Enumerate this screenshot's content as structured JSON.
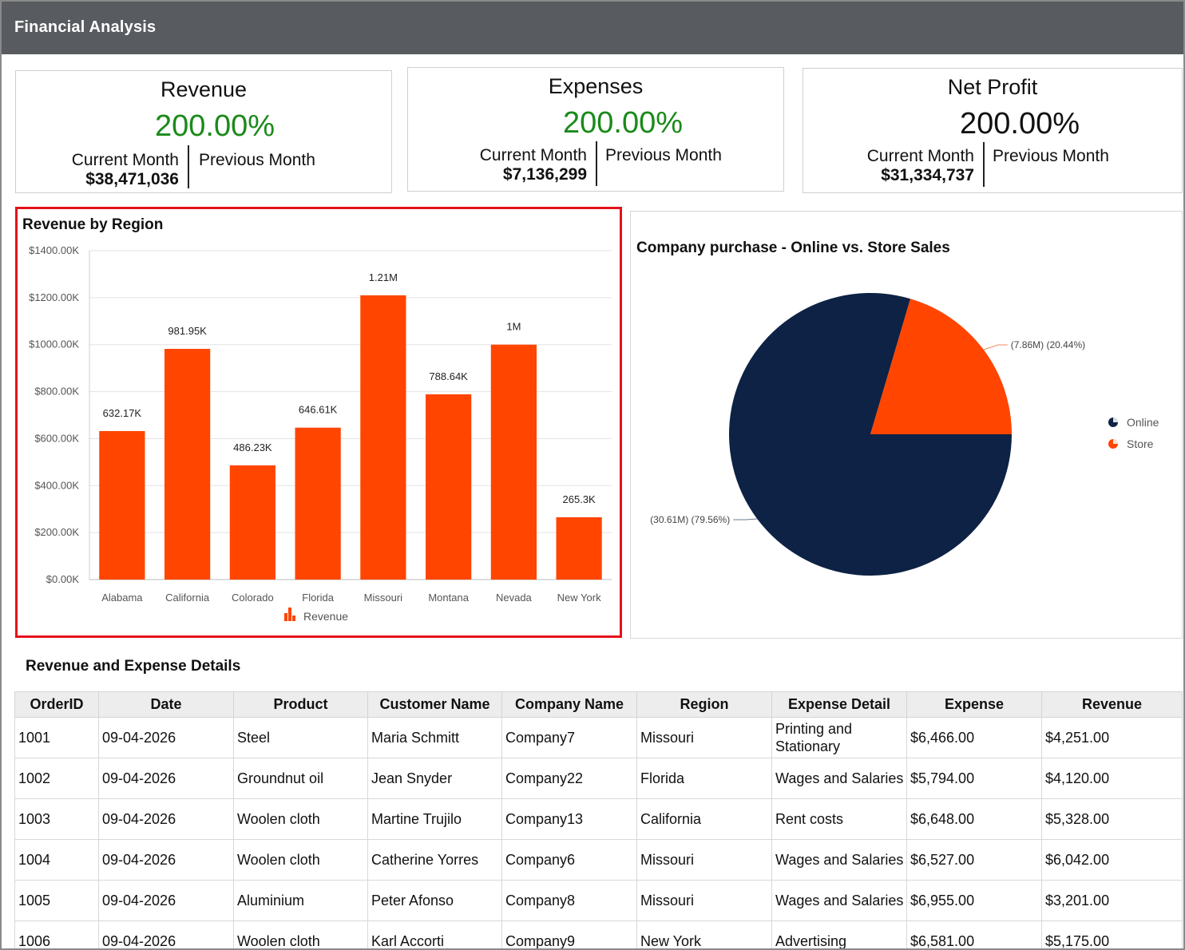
{
  "header": {
    "title": "Financial Analysis"
  },
  "kpis": [
    {
      "title": "Revenue",
      "percent": "200.00%",
      "current_label": "Current Month",
      "current_value": "$38,471,036",
      "previous_label": "Previous Month",
      "color": "#1a8a1a"
    },
    {
      "title": "Expenses",
      "percent": "200.00%",
      "current_label": "Current Month",
      "current_value": "$7,136,299",
      "previous_label": "Previous Month",
      "color": "#1a8a1a"
    },
    {
      "title": "Net Profit",
      "percent": "200.00%",
      "current_label": "Current Month",
      "current_value": "$31,334,737",
      "previous_label": "Previous Month",
      "color": "#111111"
    }
  ],
  "bar_chart": {
    "title": "Revenue by Region"
  },
  "pie_chart": {
    "title": "Company purchase - Online vs. Store Sales"
  },
  "chart_data": [
    {
      "type": "bar",
      "title": "Revenue by Region",
      "categories": [
        "Alabama",
        "California",
        "Colorado",
        "Florida",
        "Missouri",
        "Montana",
        "Nevada",
        "New York"
      ],
      "series": [
        {
          "name": "Revenue",
          "values": [
            632.17,
            981.95,
            486.23,
            646.61,
            1210,
            788.64,
            1000,
            265.3
          ],
          "color": "#ff4500"
        }
      ],
      "data_labels": [
        "632.17K",
        "981.95K",
        "486.23K",
        "646.61K",
        "1.21M",
        "788.64K",
        "1M",
        "265.3K"
      ],
      "y_ticks": [
        "$0.00K",
        "$200.00K",
        "$400.00K",
        "$600.00K",
        "$800.00K",
        "$1000.00K",
        "$1200.00K",
        "$1400.00K"
      ],
      "ylim": [
        0,
        1400
      ],
      "legend": "bottom",
      "grid": true
    },
    {
      "type": "pie",
      "title": "Company purchase - Online vs. Store Sales",
      "slices": [
        {
          "name": "Online",
          "value": 30.61,
          "label": "(30.61M) (79.56%)",
          "color": "#0d2244"
        },
        {
          "name": "Store",
          "value": 7.86,
          "label": "(7.86M) (20.44%)",
          "color": "#ff4500"
        }
      ],
      "legend": "right"
    }
  ],
  "details": {
    "title": "Revenue and Expense Details",
    "columns": [
      "OrderID",
      "Date",
      "Product",
      "Customer Name",
      "Company Name",
      "Region",
      "Expense Detail",
      "Expense",
      "Revenue"
    ],
    "rows": [
      [
        "1001",
        "09-04-2026",
        "Steel",
        "Maria Schmitt",
        "Company7",
        "Missouri",
        "Printing and Stationary",
        "$6,466.00",
        "$4,251.00"
      ],
      [
        "1002",
        "09-04-2026",
        "Groundnut oil",
        "Jean Snyder",
        "Company22",
        "Florida",
        "Wages and Salaries",
        "$5,794.00",
        "$4,120.00"
      ],
      [
        "1003",
        "09-04-2026",
        "Woolen cloth",
        "Martine Trujilo",
        "Company13",
        "California",
        "Rent costs",
        "$6,648.00",
        "$5,328.00"
      ],
      [
        "1004",
        "09-04-2026",
        "Woolen cloth",
        "Catherine Yorres",
        "Company6",
        "Missouri",
        "Wages and Salaries",
        "$6,527.00",
        "$6,042.00"
      ],
      [
        "1005",
        "09-04-2026",
        "Aluminium",
        "Peter Afonso",
        "Company8",
        "Missouri",
        "Wages and Salaries",
        "$6,955.00",
        "$3,201.00"
      ],
      [
        "1006",
        "09-04-2026",
        "Woolen cloth",
        "Karl Accorti",
        "Company9",
        "New York",
        "Advertising",
        "$6,581.00",
        "$5,175.00"
      ]
    ]
  }
}
